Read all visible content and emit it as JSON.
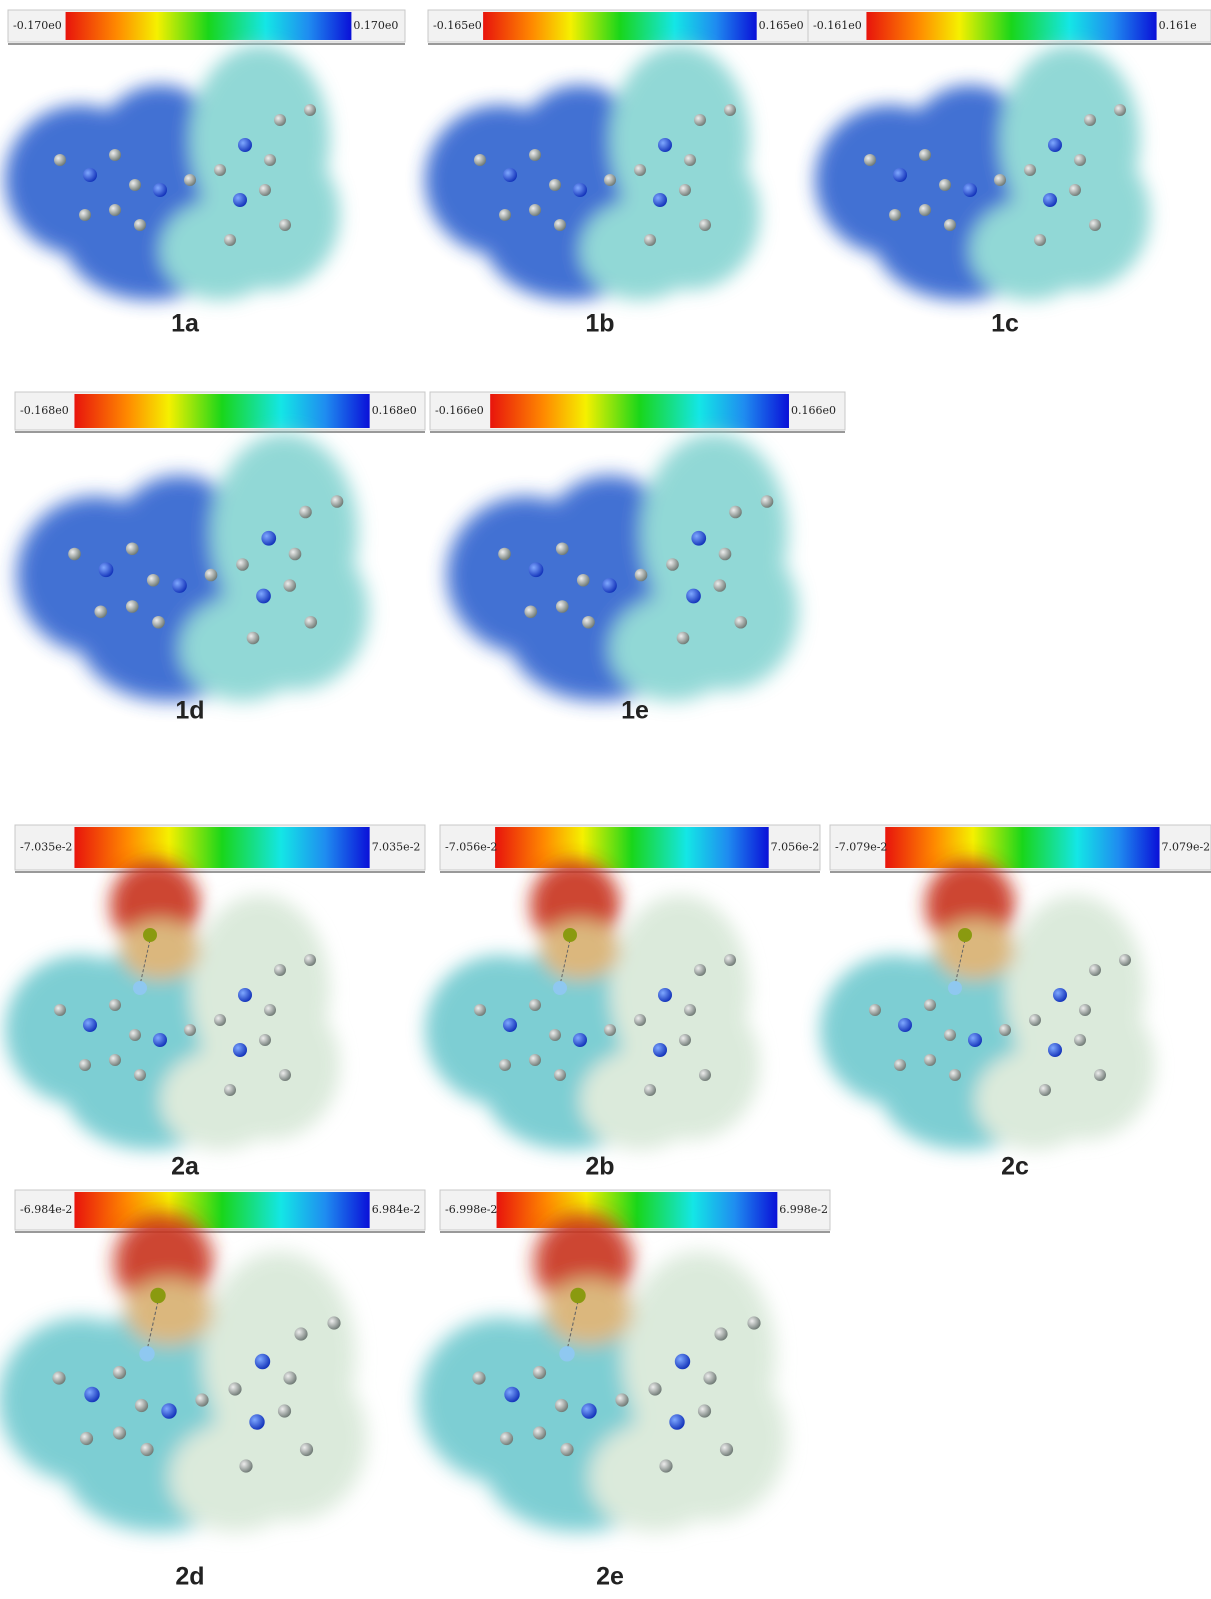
{
  "panels": [
    {
      "label": "1a",
      "min_label": "-0.170e0",
      "max_label": "0.170e0"
    },
    {
      "label": "1b",
      "min_label": "-0.165e0",
      "max_label": "0.165e0"
    },
    {
      "label": "1c",
      "min_label": "-0.161e0",
      "max_label": "0.161e"
    },
    {
      "label": "1d",
      "min_label": "-0.168e0",
      "max_label": "0.168e0"
    },
    {
      "label": "1e",
      "min_label": "-0.166e0",
      "max_label": "0.166e0"
    },
    {
      "label": "2a",
      "min_label": "-7.035e-2",
      "max_label": "7.035e-2"
    },
    {
      "label": "2b",
      "min_label": "-7.056e-2",
      "max_label": "7.056e-2"
    },
    {
      "label": "2c",
      "min_label": "-7.079e-2",
      "max_label": "7.079e-2"
    },
    {
      "label": "2d",
      "min_label": "-6.984e-2",
      "max_label": "6.984e-2"
    },
    {
      "label": "2e",
      "min_label": "-6.998e-2",
      "max_label": "6.998e-2"
    }
  ]
}
